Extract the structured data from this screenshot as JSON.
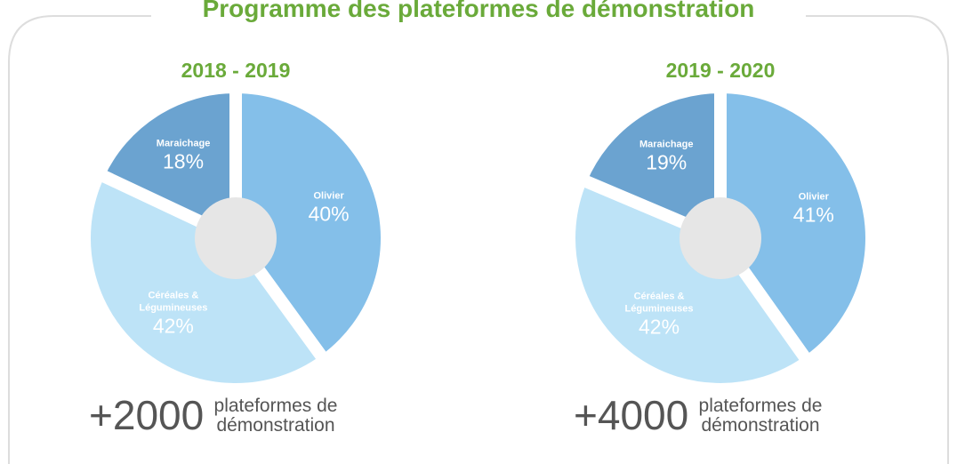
{
  "title": "Programme des plateformes de démonstration",
  "chart_data": [
    {
      "type": "pie",
      "title": "2018 - 2019",
      "categories": [
        "Olivier",
        "Céréales & Légumineuses",
        "Maraichage"
      ],
      "values": [
        40,
        42,
        18
      ],
      "value_labels": [
        "40%",
        "42%",
        "18%"
      ],
      "colors": [
        "#84bfe9",
        "#bde3f7",
        "#6ba3d0"
      ],
      "annotation": {
        "value": "+2000",
        "text": "plateformes de démonstration"
      }
    },
    {
      "type": "pie",
      "title": "2019 - 2020",
      "categories": [
        "Olivier",
        "Céréales & Légumineuses",
        "Maraichage"
      ],
      "values": [
        41,
        42,
        19
      ],
      "value_labels": [
        "41%",
        "42%",
        "19%"
      ],
      "colors": [
        "#84bfe9",
        "#bde3f7",
        "#6ba3d0"
      ],
      "annotation": {
        "value": "+4000",
        "text": "plateformes de démonstration"
      }
    }
  ]
}
